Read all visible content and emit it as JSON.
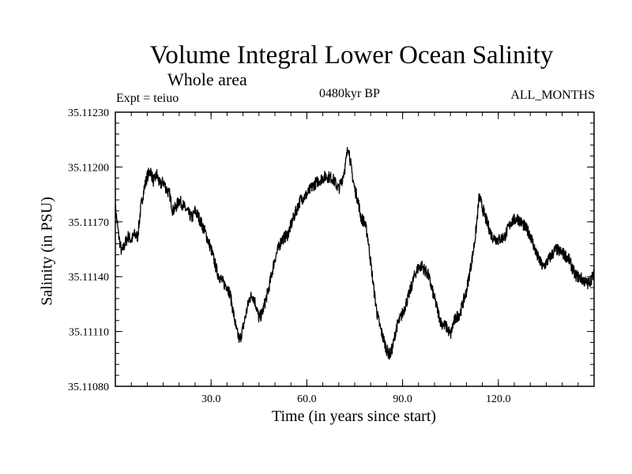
{
  "chart_data": {
    "type": "line",
    "title": "Volume Integral Lower Ocean Salinity",
    "subtitle": "Whole area",
    "expt": "Expt = teiuo",
    "period": "0480kyr BP",
    "months": "ALL_MONTHS",
    "xlabel": "Time (in years since start)",
    "ylabel": "Salinity (in PSU)",
    "xlim": [
      0,
      150
    ],
    "ylim": [
      35.1108,
      35.1123
    ],
    "xticks": [
      30,
      60,
      90,
      120
    ],
    "xtick_labels": [
      "30.0",
      "60.0",
      "90.0",
      "120.0"
    ],
    "yticks": [
      35.1108,
      35.1111,
      35.1114,
      35.1117,
      35.112,
      35.1123
    ],
    "ytick_labels": [
      "35.11080",
      "35.11110",
      "35.11140",
      "35.11170",
      "35.11200",
      "35.11230"
    ],
    "grid": false,
    "series": [
      {
        "name": "Salinity",
        "color": "#000000",
        "x": [
          0,
          1,
          2,
          3,
          4,
          5,
          6,
          7,
          8,
          9,
          10,
          11,
          12,
          13,
          14,
          15,
          16,
          17,
          18,
          19,
          20,
          22,
          24,
          25,
          26,
          28,
          30,
          32,
          34,
          35,
          36,
          37,
          38,
          39,
          40,
          41,
          42,
          43,
          44,
          45,
          46,
          48,
          50,
          52,
          54,
          56,
          58,
          60,
          62,
          64,
          66,
          68,
          70,
          71,
          72,
          73,
          74,
          75,
          76,
          77,
          78,
          79,
          80,
          81,
          82,
          83,
          84,
          85,
          86,
          87,
          88,
          90,
          92,
          94,
          95,
          96,
          98,
          100,
          102,
          104,
          105,
          106,
          107,
          108,
          110,
          112,
          113,
          114,
          116,
          118,
          120,
          122,
          124,
          126,
          128,
          130,
          132,
          134,
          136,
          138,
          140,
          142,
          144,
          146,
          148,
          150
        ],
        "y": [
          35.11178,
          35.11163,
          35.11153,
          35.11158,
          35.11162,
          35.1116,
          35.11163,
          35.11162,
          35.11178,
          35.11188,
          35.11195,
          35.11198,
          35.11192,
          35.11196,
          35.1119,
          35.11192,
          35.11188,
          35.11185,
          35.11176,
          35.11178,
          35.11182,
          35.11177,
          35.11172,
          35.11176,
          35.11173,
          35.11165,
          35.11155,
          35.11142,
          35.11136,
          35.11135,
          35.1113,
          35.1112,
          35.1111,
          35.11105,
          35.11112,
          35.1112,
          35.11128,
          35.1113,
          35.11125,
          35.11117,
          35.1112,
          35.11133,
          35.1115,
          35.1116,
          35.11163,
          35.11173,
          35.11182,
          35.11185,
          35.1119,
          35.11193,
          35.11195,
          35.11194,
          35.11188,
          35.11193,
          35.112,
          35.11212,
          35.11198,
          35.11188,
          35.11182,
          35.11172,
          35.1117,
          35.11163,
          35.11148,
          35.11133,
          35.1112,
          35.11112,
          35.11106,
          35.111,
          35.11097,
          35.11102,
          35.11112,
          35.1112,
          35.1113,
          35.11142,
          35.11145,
          35.11146,
          35.11141,
          35.11128,
          35.11115,
          35.11112,
          35.11108,
          35.11115,
          35.11118,
          35.1112,
          35.11132,
          35.11152,
          35.11165,
          35.11184,
          35.11172,
          35.11162,
          35.1116,
          35.11162,
          35.1117,
          35.11172,
          35.11168,
          35.11163,
          35.11152,
          35.11145,
          35.1115,
          35.11155,
          35.11153,
          35.1115,
          35.11141,
          35.11139,
          35.11136,
          35.11141
        ]
      }
    ]
  }
}
